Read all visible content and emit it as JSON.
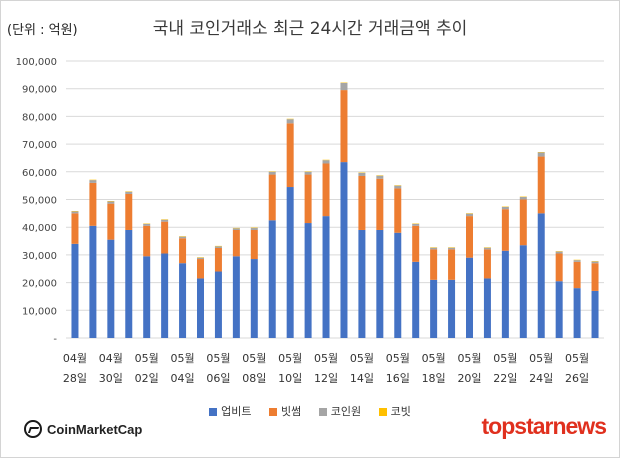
{
  "unit_label": "(단위 : 억원)",
  "watermark_left": "CoinMarketCap",
  "watermark_right": "topstarnews",
  "colors": {
    "series": [
      "#4472c4",
      "#ed7d31",
      "#a5a5a5",
      "#ffc000"
    ],
    "grid": "#d9d9d9"
  },
  "chart_data": {
    "type": "bar",
    "stacked": true,
    "title": "국내 코인거래소 최근 24시간 거래금액 추이",
    "ylim": [
      0,
      100000
    ],
    "yticks": [
      "-",
      "10,000",
      "20,000",
      "30,000",
      "40,000",
      "50,000",
      "60,000",
      "70,000",
      "80,000",
      "90,000",
      "100,000"
    ],
    "ytick_values": [
      0,
      10000,
      20000,
      30000,
      40000,
      50000,
      60000,
      70000,
      80000,
      90000,
      100000
    ],
    "grid": "horizontal",
    "legend_position": "bottom",
    "x_labels": [
      {
        "month": "04월",
        "day": "28일"
      },
      {
        "month": "04월",
        "day": "30일"
      },
      {
        "month": "05월",
        "day": "02일"
      },
      {
        "month": "05월",
        "day": "04일"
      },
      {
        "month": "05월",
        "day": "06일"
      },
      {
        "month": "05월",
        "day": "08일"
      },
      {
        "month": "05월",
        "day": "10일"
      },
      {
        "month": "05월",
        "day": "12일"
      },
      {
        "month": "05월",
        "day": "14일"
      },
      {
        "month": "05월",
        "day": "16일"
      },
      {
        "month": "05월",
        "day": "18일"
      },
      {
        "month": "05월",
        "day": "20일"
      },
      {
        "month": "05월",
        "day": "22일"
      },
      {
        "month": "05월",
        "day": "24일"
      },
      {
        "month": "05월",
        "day": "26일"
      }
    ],
    "series": [
      {
        "name": "업비트",
        "values": [
          34000,
          40500,
          35500,
          39000,
          29500,
          30500,
          27000,
          21500,
          24000,
          29500,
          28500,
          42500,
          54500,
          41500,
          44000,
          63500,
          39000,
          39000,
          38000,
          27500,
          21000,
          21000,
          29000,
          21500,
          31500,
          33500,
          45000,
          20500,
          18000,
          17000
        ]
      },
      {
        "name": "빗썸",
        "values": [
          11000,
          15500,
          13000,
          13000,
          11000,
          11500,
          9000,
          7000,
          8500,
          9500,
          10500,
          16500,
          23000,
          17500,
          19000,
          26000,
          19500,
          18500,
          16000,
          13000,
          11000,
          11000,
          15000,
          10500,
          15000,
          16500,
          20500,
          10000,
          9500,
          10000
        ]
      },
      {
        "name": "코인원",
        "values": [
          700,
          1000,
          800,
          800,
          700,
          700,
          600,
          500,
          600,
          600,
          700,
          1000,
          1500,
          1000,
          1200,
          2600,
          1100,
          1100,
          1000,
          700,
          600,
          600,
          900,
          600,
          800,
          900,
          1500,
          700,
          600,
          600
        ]
      },
      {
        "name": "코빗",
        "values": [
          150,
          150,
          150,
          150,
          150,
          150,
          150,
          150,
          150,
          150,
          150,
          150,
          150,
          150,
          150,
          150,
          150,
          150,
          150,
          150,
          150,
          150,
          150,
          150,
          150,
          150,
          150,
          150,
          150,
          150
        ]
      }
    ]
  }
}
